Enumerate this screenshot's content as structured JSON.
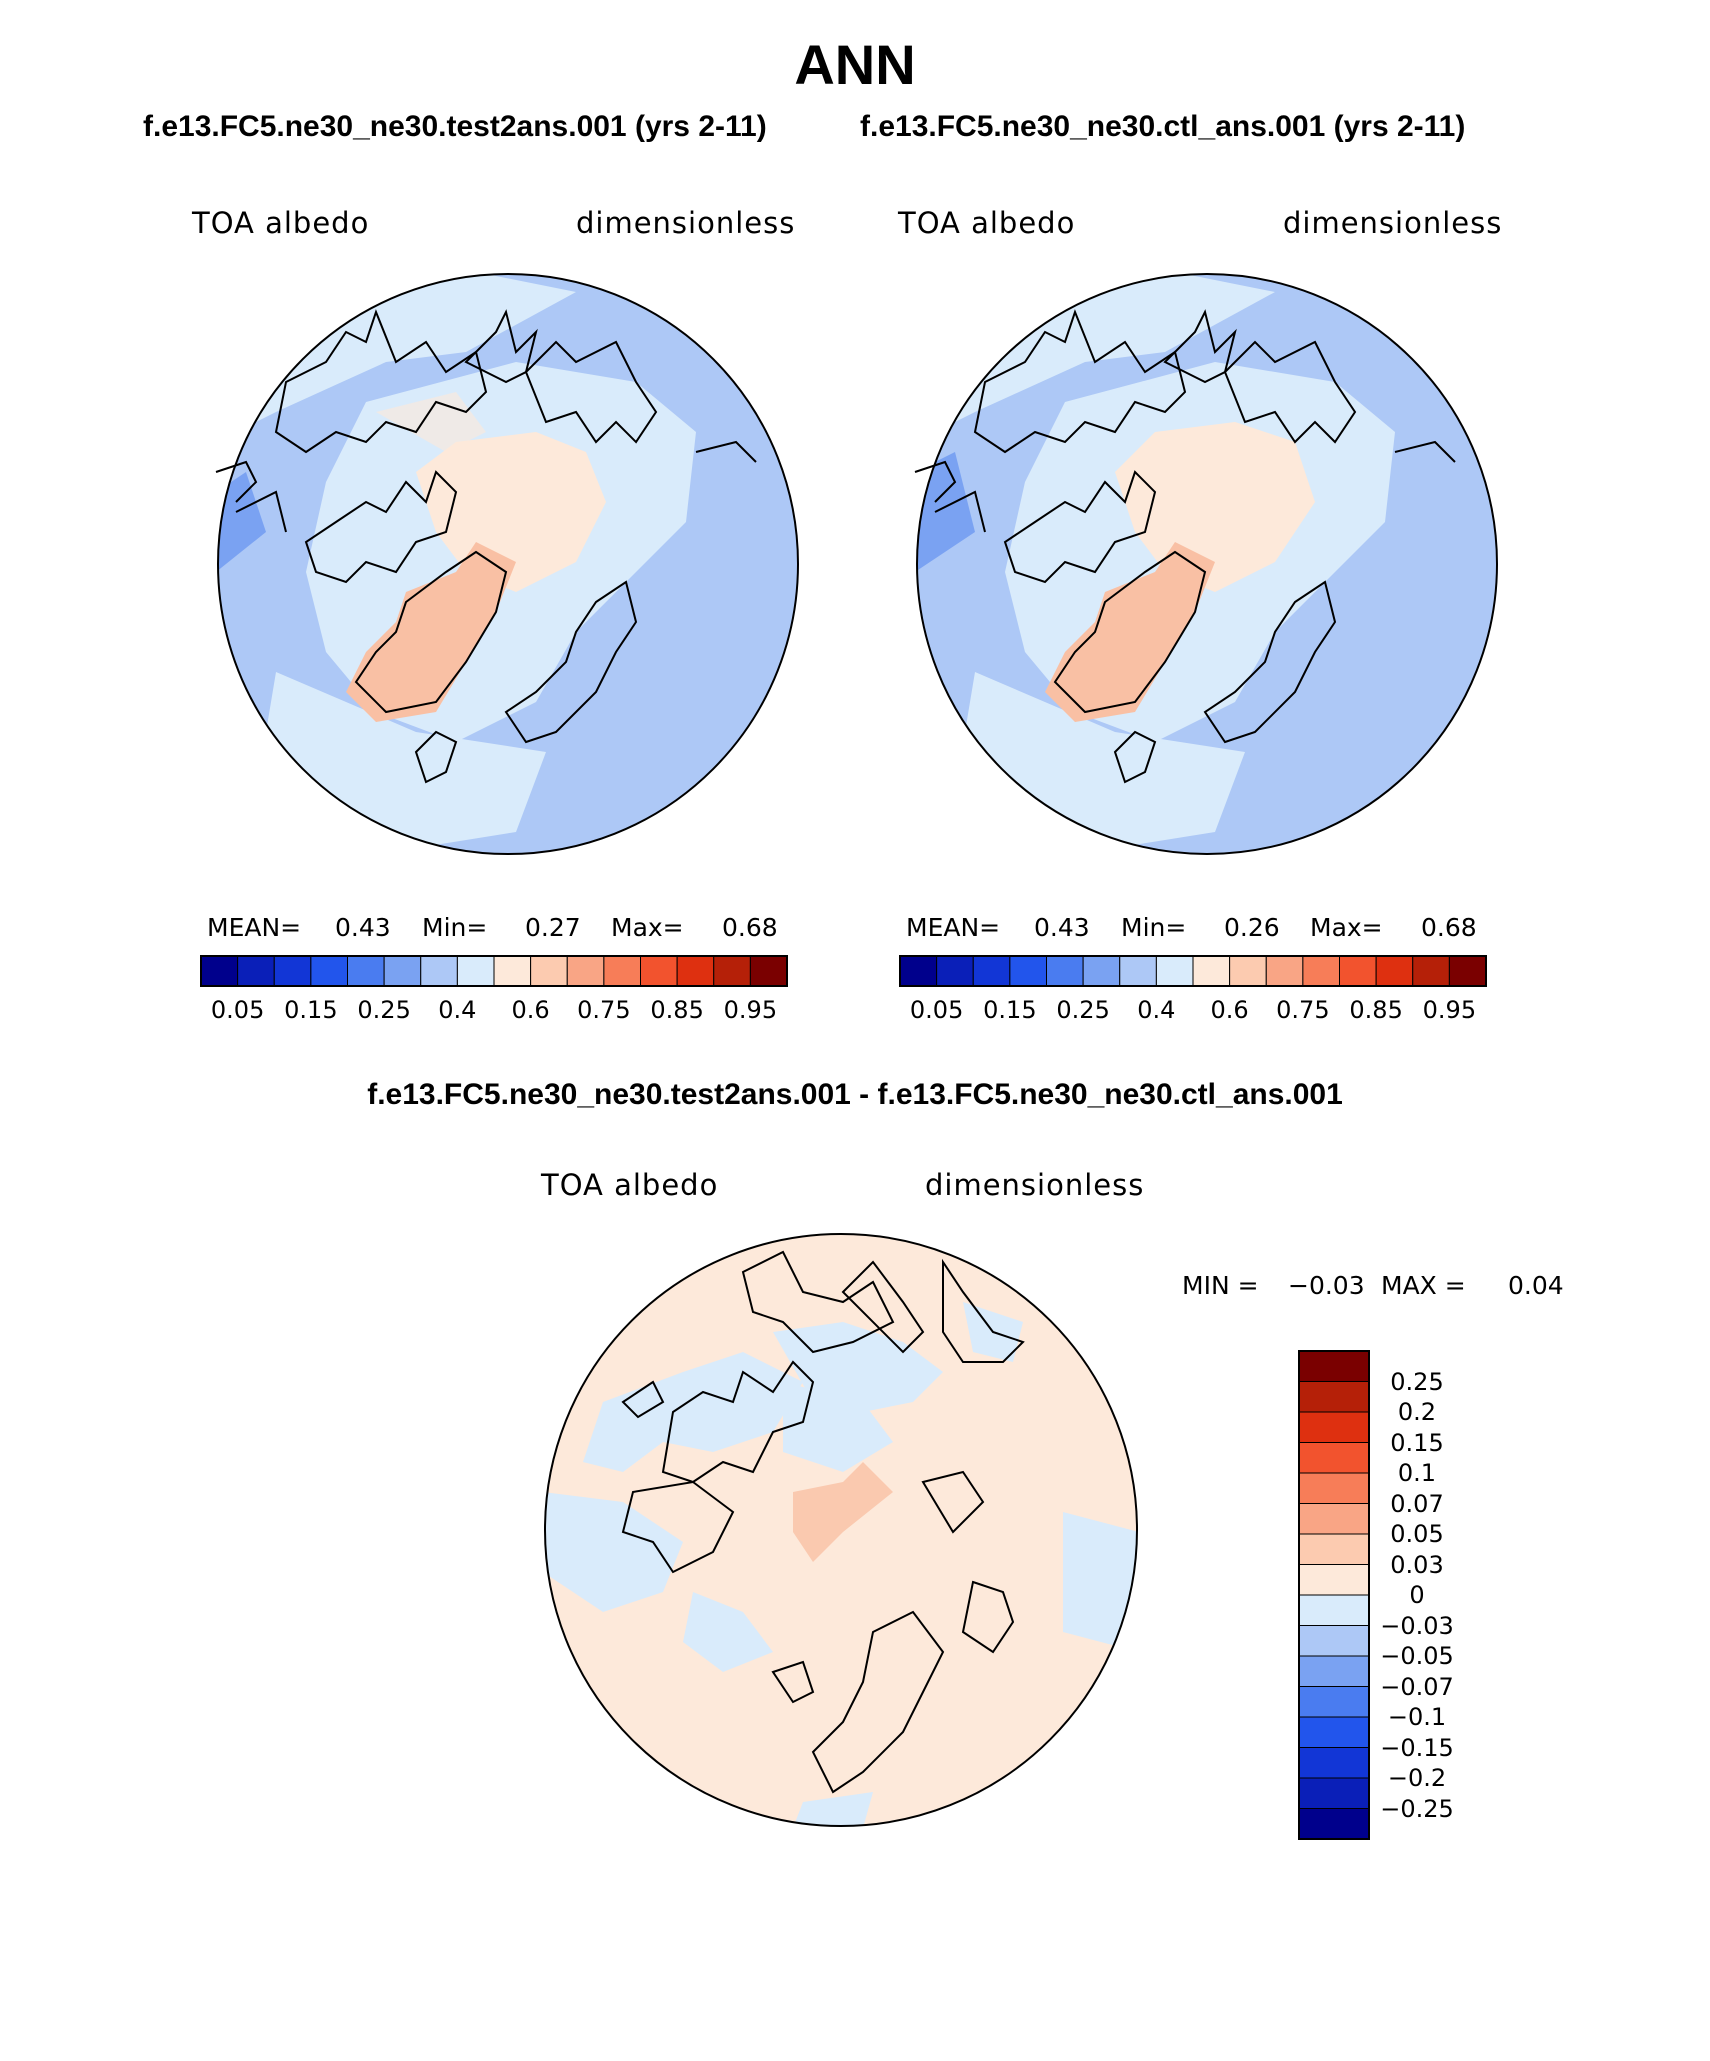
{
  "page": {
    "title": "ANN",
    "left_subtitle": "f.e13.FC5.ne30_ne30.test2ans.001 (yrs 2-11)",
    "right_subtitle": "f.e13.FC5.ne30_ne30.ctl_ans.001 (yrs 2-11)",
    "diff_title": "f.e13.FC5.ne30_ne30.test2ans.001 - f.e13.FC5.ne30_ne30.ctl_ans.001"
  },
  "panels": [
    {
      "variable": "TOA albedo",
      "units": "dimensionless",
      "mean_label": "MEAN=",
      "mean": "0.43",
      "min_label": "Min=",
      "min": "0.27",
      "max_label": "Max=",
      "max": "0.68"
    },
    {
      "variable": "TOA albedo",
      "units": "dimensionless",
      "mean_label": "MEAN=",
      "mean": "0.43",
      "min_label": "Min=",
      "min": "0.26",
      "max_label": "Max=",
      "max": "0.68"
    }
  ],
  "diff_panel": {
    "variable": "TOA albedo",
    "units": "dimensionless",
    "min_label": "MIN =",
    "min": "−0.03",
    "max_label": "MAX =",
    "max": "0.04"
  },
  "colorbar_main": {
    "colors": [
      "#00008c",
      "#0a1fb8",
      "#1236d6",
      "#2255ec",
      "#4a7cf0",
      "#7aa2f2",
      "#adc8f6",
      "#d9ebfb",
      "#fde9da",
      "#fccbb0",
      "#f9a585",
      "#f77d58",
      "#f2532e",
      "#de3010",
      "#b52008",
      "#7a0000"
    ],
    "labels": [
      "0.05",
      "0.15",
      "0.25",
      "0.4",
      "0.6",
      "0.75",
      "0.85",
      "0.95"
    ]
  },
  "colorbar_diff": {
    "colors_top_to_bottom": [
      "#7a0000",
      "#b52008",
      "#de3010",
      "#f2532e",
      "#f77d58",
      "#f9a585",
      "#fccbb0",
      "#fde9da",
      "#d9ebfb",
      "#adc8f6",
      "#7aa2f2",
      "#4a7cf0",
      "#2255ec",
      "#1236d6",
      "#0a1fb8",
      "#00008c"
    ],
    "labels_top_to_bottom": [
      "0.25",
      "0.2",
      "0.15",
      "0.1",
      "0.07",
      "0.05",
      "0.03",
      "0",
      "−0.03",
      "−0.05",
      "−0.07",
      "−0.1",
      "−0.15",
      "−0.2",
      "−0.25"
    ]
  }
}
